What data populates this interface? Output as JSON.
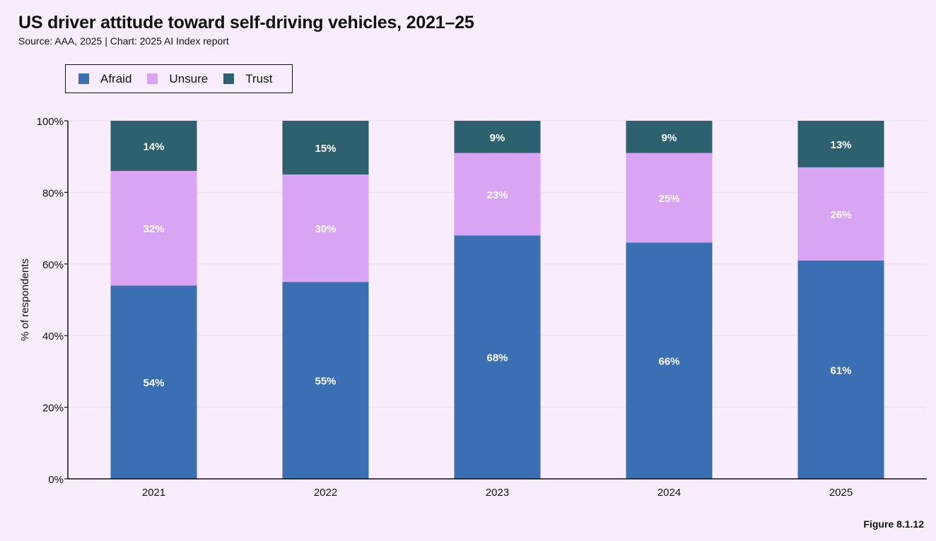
{
  "title": "US driver attitude toward self-driving vehicles, 2021–25",
  "subtitle": "Source: AAA, 2025 | Chart: 2025 AI Index report",
  "figure_label": "Figure 8.1.12",
  "colors": {
    "afraid": "#3a6fb4",
    "unsure": "#daa4f5",
    "trust": "#2d6170",
    "background": "#f9edfd",
    "grid": "#f0dbf5",
    "axis": "#111111"
  },
  "legend": [
    {
      "label": "Afraid",
      "color": "#3a6fb4"
    },
    {
      "label": "Unsure",
      "color": "#daa4f5"
    },
    {
      "label": "Trust",
      "color": "#2d6170"
    }
  ],
  "chart_data": {
    "type": "bar",
    "stacked": true,
    "categories": [
      "2021",
      "2022",
      "2023",
      "2024",
      "2025"
    ],
    "series": [
      {
        "name": "Afraid",
        "values": [
          54,
          55,
          68,
          66,
          61
        ],
        "labels": [
          "54%",
          "55%",
          "68%",
          "66%",
          "61%"
        ]
      },
      {
        "name": "Unsure",
        "values": [
          32,
          30,
          23,
          25,
          26
        ],
        "labels": [
          "32%",
          "30%",
          "23%",
          "25%",
          "26%"
        ]
      },
      {
        "name": "Trust",
        "values": [
          14,
          15,
          9,
          9,
          13
        ],
        "labels": [
          "14%",
          "15%",
          "9%",
          "9%",
          "13%"
        ]
      }
    ],
    "xlabel": "",
    "ylabel": "% of respondents",
    "ylim": [
      0,
      100
    ],
    "yticks": [
      0,
      20,
      40,
      60,
      80,
      100
    ],
    "ytick_labels": [
      "0%",
      "20%",
      "40%",
      "60%",
      "80%",
      "100%"
    ],
    "grid": true,
    "legend_position": "top-left"
  }
}
